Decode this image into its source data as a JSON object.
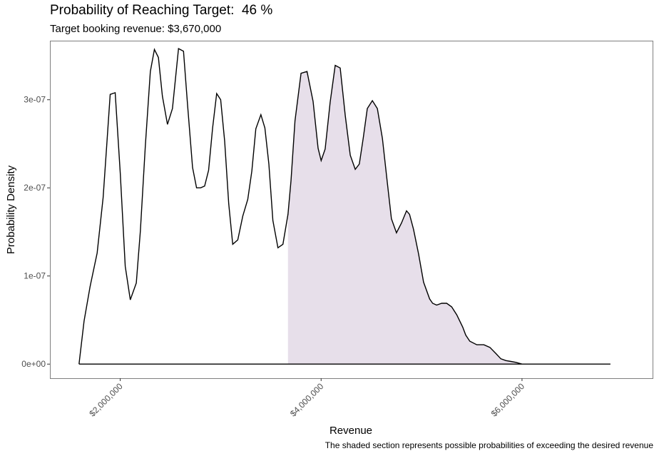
{
  "chart_data": {
    "type": "area",
    "title": "Probability of Reaching Target:  46 %",
    "subtitle": "Target booking revenue: $3,670,000",
    "caption": "The shaded section represents possible probabilities of exceeding the desired revenue",
    "xlabel": "Revenue",
    "ylabel": "Probability Density",
    "xlim": [
      1300000,
      7300000
    ],
    "ylim": [
      -1.6e-08,
      3.67e-07
    ],
    "x_ticks": [
      {
        "value": 2000000,
        "label": "$2,000,000"
      },
      {
        "value": 4000000,
        "label": "$4,000,000"
      },
      {
        "value": 6000000,
        "label": "$6,000,000"
      }
    ],
    "y_ticks": [
      {
        "value": 0,
        "label": "0e+00"
      },
      {
        "value": 1e-07,
        "label": "1e-07"
      },
      {
        "value": 2e-07,
        "label": "2e-07"
      },
      {
        "value": 3e-07,
        "label": "3e-07"
      }
    ],
    "target": 3670000,
    "shade_color": "#e7dfea",
    "line_color": "#000000",
    "grid": false,
    "x": [
      1590000,
      1640000,
      1700000,
      1770000,
      1830000,
      1870000,
      1900000,
      1950000,
      2000000,
      2050000,
      2100000,
      2160000,
      2200000,
      2250000,
      2300000,
      2340000,
      2380000,
      2420000,
      2470000,
      2520000,
      2580000,
      2630000,
      2670000,
      2720000,
      2760000,
      2800000,
      2840000,
      2880000,
      2920000,
      2960000,
      3000000,
      3040000,
      3080000,
      3120000,
      3170000,
      3220000,
      3270000,
      3310000,
      3350000,
      3400000,
      3440000,
      3480000,
      3520000,
      3570000,
      3620000,
      3670000,
      3700000,
      3740000,
      3800000,
      3860000,
      3920000,
      3970000,
      4000000,
      4040000,
      4090000,
      4140000,
      4190000,
      4240000,
      4290000,
      4340000,
      4380000,
      4420000,
      4460000,
      4510000,
      4560000,
      4610000,
      4660000,
      4700000,
      4750000,
      4800000,
      4850000,
      4880000,
      4920000,
      4970000,
      5020000,
      5080000,
      5110000,
      5150000,
      5200000,
      5250000,
      5300000,
      5350000,
      5410000,
      5440000,
      5480000,
      5550000,
      5620000,
      5680000,
      5740000,
      5790000,
      5840000,
      5890000,
      5940000,
      6000000,
      6080000,
      6160000,
      6230000,
      6280000,
      6320000,
      6370000,
      6420000,
      6460000,
      6540000,
      6620000,
      6700000,
      6790000,
      6880000
    ],
    "y": [
      0,
      4.9e-08,
      8.8e-08,
      1.26e-07,
      1.89e-07,
      2.56e-07,
      3.06e-07,
      3.08e-07,
      2.17e-07,
      1.11e-07,
      7.3e-08,
      9.2e-08,
      1.51e-07,
      2.48e-07,
      3.32e-07,
      3.57e-07,
      3.48e-07,
      3.04e-07,
      2.72e-07,
      2.9e-07,
      3.58e-07,
      3.55e-07,
      2.95e-07,
      2.23e-07,
      2e-07,
      2e-07,
      2.02e-07,
      2.2e-07,
      2.68e-07,
      3.07e-07,
      3e-07,
      2.53e-07,
      1.82e-07,
      1.36e-07,
      1.41e-07,
      1.68e-07,
      1.87e-07,
      2.19e-07,
      2.67e-07,
      2.83e-07,
      2.68e-07,
      2.27e-07,
      1.63e-07,
      1.32e-07,
      1.36e-07,
      1.7e-07,
      2.08e-07,
      2.76e-07,
      3.3e-07,
      3.32e-07,
      2.98e-07,
      2.45e-07,
      2.31e-07,
      2.44e-07,
      2.97e-07,
      3.39e-07,
      3.36e-07,
      2.82e-07,
      2.37e-07,
      2.21e-07,
      2.27e-07,
      2.57e-07,
      2.9e-07,
      2.99e-07,
      2.9e-07,
      2.56e-07,
      2.05e-07,
      1.65e-07,
      1.49e-07,
      1.6e-07,
      1.74e-07,
      1.7e-07,
      1.53e-07,
      1.25e-07,
      9.3e-08,
      7.4e-08,
      6.9e-08,
      6.7e-08,
      6.9e-08,
      6.9e-08,
      6.5e-08,
      5.6e-08,
      4.2e-08,
      3.3e-08,
      2.6e-08,
      2.2e-08,
      2.2e-08,
      1.9e-08,
      1.2e-08,
      6e-09,
      4e-09,
      3e-09,
      2e-09,
      0,
      0,
      0,
      0,
      0,
      0,
      0,
      0,
      0,
      0,
      0,
      0,
      0,
      0
    ]
  }
}
